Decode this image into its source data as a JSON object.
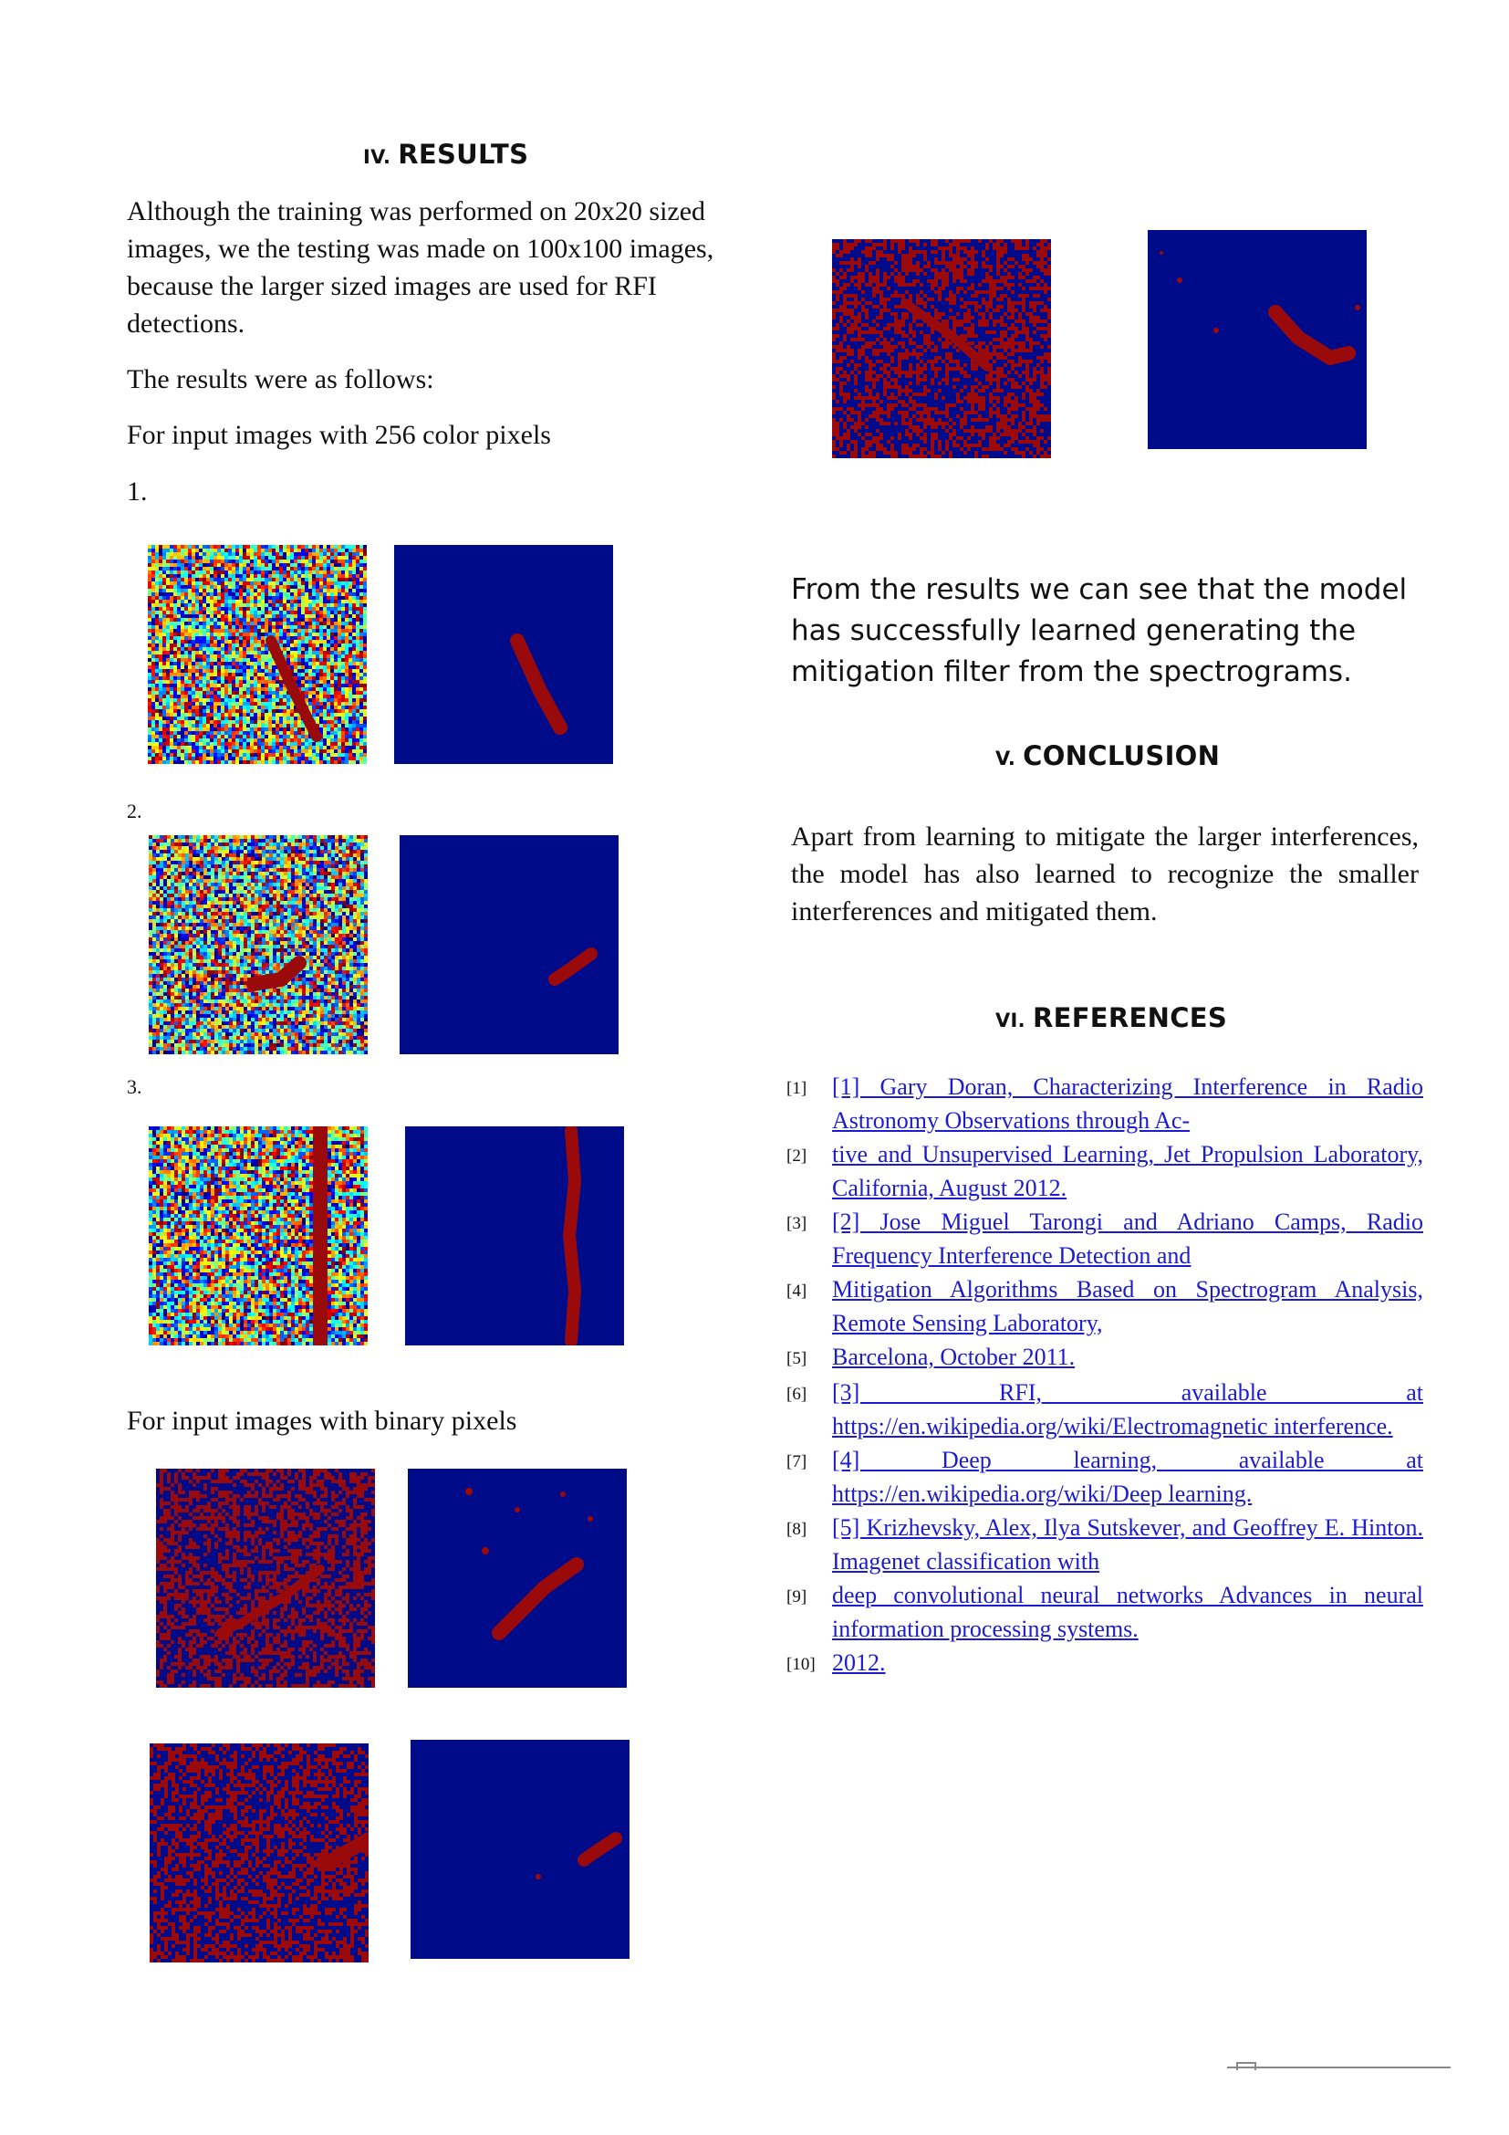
{
  "results": {
    "heading_num": "IV.",
    "heading": "RESULTS",
    "intro": "Although the training was performed on 20x20 sized images,  we the testing was made on 100x100 images, because the larger sized images are used for RFI detections.",
    "follows": "The results were as follows:",
    "color_label": "For input images with 256 color pixels",
    "item1": "1.",
    "item2": "2.",
    "item3": "3.",
    "binary_label": "For input images with binary pixels",
    "observation": "From the results we can see that the model has successfully  learned generating the mitigation filter from the spectrograms."
  },
  "conclusion": {
    "heading_num": "V.",
    "heading": "CONCLUSION",
    "text": "Apart from learning to mitigate the larger interferences, the model has also learned to recognize the smaller interferences and mitigated them."
  },
  "references": {
    "heading_num": "VI.",
    "heading": "REFERENCES",
    "items": [
      {
        "num": "[1]",
        "text": "[1] Gary Doran, Characterizing Interference in Radio Astronomy Observations through Ac-"
      },
      {
        "num": "[2]",
        "text": "tive and Unsupervised Learning, Jet Propulsion Laboratory, California, August 2012."
      },
      {
        "num": "[3]",
        "text": "[2] Jose Miguel Tarongi and Adriano Camps, Radio Frequency Interference Detection and"
      },
      {
        "num": "[4]",
        "text": "Mitigation Algorithms Based on Spectrogram Analysis, Remote Sensing Laboratory,"
      },
      {
        "num": "[5]",
        "text": "Barcelona, October 2011."
      },
      {
        "num": "[6]",
        "text": "[3] RFI, available at https://en.wikipedia.org/wiki/Electromagnetic interference."
      },
      {
        "num": "[7]",
        "text": "[4] Deep learning, available at https://en.wikipedia.org/wiki/Deep learning."
      },
      {
        "num": "[8]",
        "text": "[5] Krizhevsky, Alex, Ilya Sutskever, and Geoffrey E. Hinton. Imagenet classification with"
      },
      {
        "num": "[9]",
        "text": "deep convolutional neural networks Advances in neural information processing systems."
      },
      {
        "num": "[10]",
        "text": "2012."
      }
    ]
  },
  "colors": {
    "background_blue": "#000b8a",
    "streak_red": "#9b0a0a",
    "link_blue": "#1b1bd0"
  }
}
